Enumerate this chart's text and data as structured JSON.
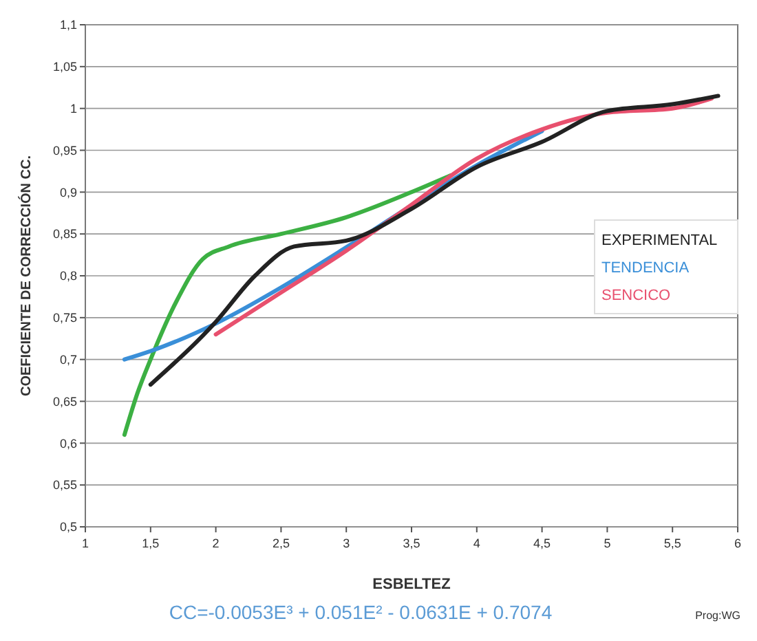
{
  "chart_data": {
    "type": "line",
    "xlabel": "ESBELTEZ",
    "ylabel": "COEFICIENTE DE CORRECCIÓN CC.",
    "annotations": [
      "CC=-0.0053E³ + 0.051E² - 0.0631E + 0.7074",
      "Prog:WG"
    ],
    "series": [
      {
        "color": "#3cb043",
        "x": [
          1.3,
          1.4,
          1.5,
          1.7,
          1.9,
          2.1,
          2.5,
          3,
          3.5,
          3.8
        ],
        "values": [
          0.61,
          0.66,
          0.7,
          0.77,
          0.82,
          0.835,
          0.85,
          0.87,
          0.9,
          0.92
        ]
      },
      {
        "name": "TENDENCIA",
        "color": "#3a8fd8",
        "x": [
          1.3,
          1.5,
          2,
          2.5,
          3,
          3.5,
          4,
          4.5
        ],
        "values": [
          0.7,
          0.71,
          0.743,
          0.786,
          0.834,
          0.884,
          0.932,
          0.973
        ]
      },
      {
        "name": "SENCICO",
        "color": "#e8506e",
        "x": [
          2,
          2.5,
          3,
          3.5,
          4,
          4.5,
          5,
          5.5,
          5.8
        ],
        "values": [
          0.73,
          0.78,
          0.83,
          0.885,
          0.94,
          0.975,
          0.995,
          1.0,
          1.012
        ]
      },
      {
        "name": "EXPERIMENTAL",
        "color": "#222222",
        "x": [
          1.5,
          2,
          2.3,
          2.6,
          3,
          3.5,
          4,
          4.5,
          5,
          5.5,
          5.85
        ],
        "values": [
          0.67,
          0.745,
          0.8,
          0.835,
          0.842,
          0.88,
          0.93,
          0.96,
          0.997,
          1.005,
          1.015
        ]
      }
    ],
    "xlim": [
      1,
      6
    ],
    "xticks": [
      1,
      {
        "value": 1.5,
        "label": "1,5"
      },
      2,
      {
        "value": 2.5,
        "label": "2,5"
      },
      3,
      {
        "value": 3.5,
        "label": "3,5"
      },
      4,
      {
        "value": 4.5,
        "label": "4,5"
      },
      5,
      {
        "value": 5.5,
        "label": "5,5"
      },
      6
    ],
    "ylim": [
      0.5,
      1.1
    ],
    "yticks": [
      {
        "value": 0.5,
        "label": "0,5"
      },
      {
        "value": 0.55,
        "label": "0,55"
      },
      {
        "value": 0.6,
        "label": "0,6"
      },
      {
        "value": 0.65,
        "label": "0,65"
      },
      {
        "value": 0.7,
        "label": "0,7"
      },
      {
        "value": 0.75,
        "label": "0,75"
      },
      {
        "value": 0.8,
        "label": "0,8"
      },
      {
        "value": 0.85,
        "label": "0,85"
      },
      {
        "value": 0.9,
        "label": "0,9"
      },
      {
        "value": 0.95,
        "label": "0,95"
      },
      1,
      {
        "value": 1.05,
        "label": "1,05"
      },
      {
        "value": 1.1,
        "label": "1,1"
      }
    ],
    "grid": "y",
    "legend": "right",
    "marker": "none",
    "line_style": "solid"
  }
}
